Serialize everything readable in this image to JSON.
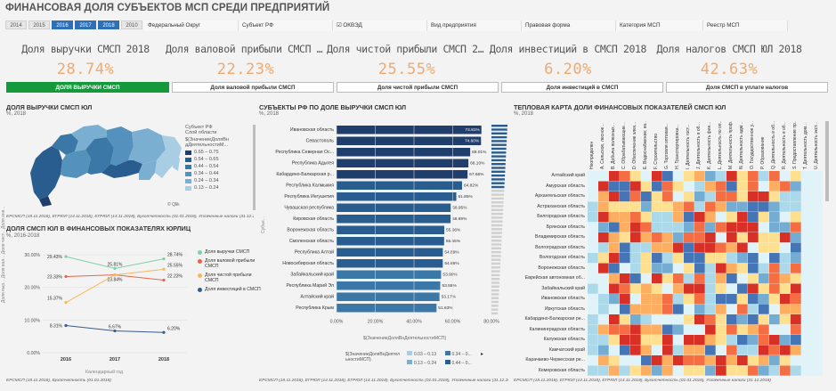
{
  "title": "ФИНАНСОВАЯ ДОЛЯ СУБЪЕКТОВ МСП СРЕДИ ПРЕДПРИЯТИЙ",
  "years": [
    {
      "label": "2014",
      "selected": false
    },
    {
      "label": "2015",
      "selected": false
    },
    {
      "label": "2016",
      "selected": true
    },
    {
      "label": "2017",
      "selected": true
    },
    {
      "label": "2018",
      "selected": true
    },
    {
      "label": "2010",
      "selected": false
    }
  ],
  "filters": [
    {
      "label": "Федеральный Округ"
    },
    {
      "label": "Субъект РФ"
    },
    {
      "label": "☑ ОКВЭД"
    },
    {
      "label": "Вид предприятия"
    },
    {
      "label": "Правовая форма"
    },
    {
      "label": "Категория МСП"
    },
    {
      "label": "Реестр МСП"
    }
  ],
  "kpis": [
    {
      "label": "Доля выручки СМСП 2018",
      "value": "28.74%"
    },
    {
      "label": "Доля валовой прибыли СМСП 2...",
      "value": "22.23%"
    },
    {
      "label": "Доля чистой прибыли СМСП 20...",
      "value": "25.55%"
    },
    {
      "label": "Доля инвестиций в СМСП 2018",
      "value": "6.20%"
    },
    {
      "label": "Доля налогов СМСП ЮЛ 2018",
      "value": "42.63%"
    }
  ],
  "tabs": [
    {
      "label": "ДОЛЯ ВЫРУЧКИ СМСП",
      "active": true
    },
    {
      "label": "Доля валовой прибыли СМСП",
      "active": false
    },
    {
      "label": "Доля чистой прибыли СМСП",
      "active": false
    },
    {
      "label": "Доля инвестиций в СМСП",
      "active": false
    },
    {
      "label": "Доля СМСП в уплате налогов",
      "active": false
    }
  ],
  "map_panel": {
    "title": "ДОЛЯ ВЫРУЧКИ СМСП ЮЛ",
    "subtitle": "%, 2018",
    "legend_title": "Субъект РФ",
    "legend_sub": "Слой области",
    "legend_field": "$(ЗначениеДоляВн дДеятельностиМ...",
    "legend_items": [
      {
        "label": "0.65 – 0.75",
        "color": "#1f3e6b"
      },
      {
        "label": "0.54 – 0.65",
        "color": "#2a5d8f"
      },
      {
        "label": "0.44 – 0.54",
        "color": "#3b78a8"
      },
      {
        "label": "0.34 – 0.44",
        "color": "#5591bd"
      },
      {
        "label": "0.24 – 0.34",
        "color": "#7aafd1"
      },
      {
        "label": "0.13 – 0.24",
        "color": "#a9cde3"
      }
    ],
    "qlik": "© Qlik",
    "footer": "ЕРСМСП (18.11.2018), ЕГРЮЛ (14.11.2018), ЕГРЮЛ (14.11.2018), Бухотчетность (01.01.2018), Уплаченные налоги (31.12.2018)"
  },
  "line_panel": {
    "title": "ДОЛЯ СМСП ЮЛ В ФИНАНСОВЫХ ПОКАЗАТЕЛЯХ ЮРЛИЦ",
    "subtitle": "%, 2016-2018",
    "xlabel": "Календарный год",
    "ylabel": "Доля выр... Доля вал... Доля чист... Доля инв...",
    "footer": "ЕРСМСП (18.11.2018), Бухотчетность (01.01.2018)"
  },
  "bar_panel": {
    "title": "СУБЪЕКТЫ РФ ПО ДОЛЕ ВЫРУЧКИ СМСП ЮЛ",
    "subtitle": "%, 2018",
    "ylabel": "Субъе...",
    "xlabel": "$(ЗначениеДоляВнДеятельностиМСП)",
    "legend_field": "$(ЗначениеДоляВнДеятел ьностиМСП)",
    "legend_items": [
      {
        "label": "0.03 – 0.13",
        "color": "#a9cde3"
      },
      {
        "label": "0.34 – 0...",
        "color": "#3b78a8"
      },
      {
        "label": "0.13 – 0.24",
        "color": "#7aafd1"
      },
      {
        "label": "0.44 – 0...",
        "color": "#2a5d8f"
      }
    ],
    "footer": "ЕРСМСП (18.11.2018), ЕГРЮЛ (14.11.2018), ЕГРЮЛ (14.11.2018), Бухотчетность (01.01.2018), Уплаченные налоги (31.12.2018)"
  },
  "heatmap_panel": {
    "title": "ТЕПЛОВАЯ КАРТА ДОЛИ ФИНАНСОВЫХ ПОКАЗАТЕЛЕЙ СМСП ЮЛ",
    "subtitle": "%, 2018",
    "columns": [
      "Неопределен",
      "A. Сельское, лесное...",
      "B. Добыча полезных...",
      "C. Обрабатывающие...",
      "D. Обеспечение элек...",
      "E. Водоснабжение; во...",
      "F. Строительство",
      "G. Торговля оптовая...",
      "H. Транспортировка...",
      "I. Деятельность гост...",
      "J. Деятельность в об...",
      "K. Деятельность фин...",
      "L. Деятельность по оп...",
      "M. Деятельность проф...",
      "N. Деятельность адм...",
      "O. Государственное у...",
      "P. Образование",
      "Q. Деятельность в об...",
      "R. Деятельность в об...",
      "S. Предоставление пр...",
      "T. Деятельность дом...",
      "U. Деятельность экст..."
    ],
    "rows": [
      "Алтайский край",
      "Амурская область",
      "Архангельская область",
      "Астраханская область",
      "Белгородская область",
      "Брянская область",
      "Владимирская область",
      "Волгоградская область",
      "Вологодская область",
      "Воронежская область",
      "Еврейская автономная об...",
      "Забайкальский край",
      "Ивановская область",
      "Иркутская область",
      "Кабардино-Балкарская ре...",
      "Калининградская область",
      "Калужская область",
      "Камчатский край",
      "Карачаево-Черкесская ре...",
      "Кемеровская область"
    ],
    "footer": "ЕРСМСП (18.11.2018), ЕГРЮЛ (14.11.2018), ЕГРЮЛ (14.11.2018), Бухотчетность (01.01.2018), Уплаченные налоги (31.12.2018)"
  },
  "chart_data": [
    {
      "type": "line",
      "title": "ДОЛЯ СМСП ЮЛ В ФИНАНСОВЫХ ПОКАЗАТЕЛЯХ ЮРЛИЦ",
      "xlabel": "Календарный год",
      "x": [
        "2016",
        "2017",
        "2018"
      ],
      "ylim": [
        0,
        30
      ],
      "yticks": [
        "0.00%",
        "10.00%",
        "20.00%",
        "30.00%"
      ],
      "series": [
        {
          "name": "Доля выручки СМСП",
          "color": "#7fd1a8",
          "values": [
            29.43,
            25.81,
            28.74
          ],
          "labels": [
            "29.43%",
            "25.81%",
            "28.74%"
          ]
        },
        {
          "name": "Доля валовой прибыли СМСП",
          "color": "#e9644a",
          "values": [
            23.33,
            23.84,
            22.23
          ],
          "labels": [
            "23.33%",
            "23.84%",
            "22.23%"
          ]
        },
        {
          "name": "Доля чистой прибыли СМСП",
          "color": "#f4b860",
          "values": [
            15.37,
            23.84,
            25.55
          ],
          "labels": [
            "15.37%",
            "",
            "25.55%"
          ]
        },
        {
          "name": "Доля инвестиций в СМСП",
          "color": "#3a5a8c",
          "values": [
            8.31,
            6.67,
            6.2
          ],
          "labels": [
            "8.31%",
            "6.67%",
            "6.20%"
          ]
        }
      ]
    },
    {
      "type": "bar",
      "orientation": "horizontal",
      "title": "СУБЪЕКТЫ РФ ПО ДОЛЕ ВЫРУЧКИ СМСП ЮЛ",
      "xlim": [
        0,
        80
      ],
      "xticks": [
        "0.00%",
        "20.00%",
        "40.00%",
        "60.00%",
        "80.00%"
      ],
      "categories": [
        "Ивановская область",
        "Севастополь",
        "Республика Северная Ос...",
        "Республика Адыгея",
        "Кабардино-Балкарская р...",
        "Республика Калмыкия",
        "Республика Ингушетия",
        "Чувашская республика",
        "Кировская область",
        "Воронежская область",
        "Смоленская область",
        "Республика Алтай",
        "Новосибирская область",
        "Забайкальский край",
        "Республика Марий Эл",
        "Алтайский край",
        "Республика Крым"
      ],
      "values": [
        74.81,
        74.6,
        69.01,
        68.1,
        67.66,
        64.82,
        61.85,
        58.95,
        58.89,
        55.66,
        55.55,
        54.89,
        54.86,
        53.99,
        53.55,
        53.17,
        51.63
      ],
      "labels": [
        "74.81%",
        "74.60%",
        "69.01%",
        "68.10%",
        "67.66%",
        "64.82%",
        "61.85%",
        "58.95%",
        "58.89%",
        "55.66%",
        "55.55%",
        "54.89%",
        "54.86%",
        "53.99%",
        "53.55%",
        "53.17%",
        "51.63%"
      ]
    }
  ]
}
